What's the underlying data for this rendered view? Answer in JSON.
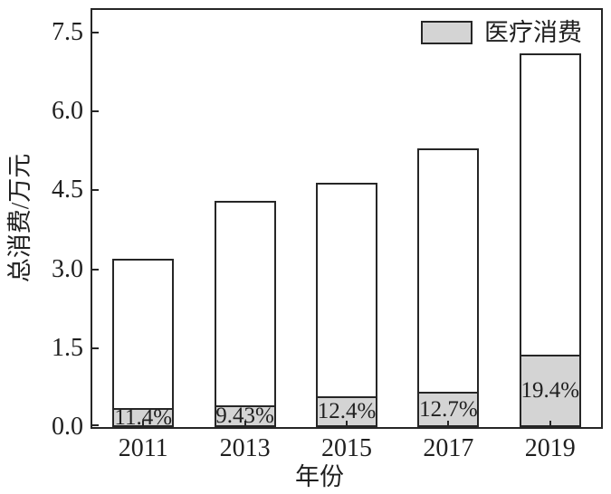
{
  "chart_data": {
    "type": "bar",
    "description": "Grouped total-consumption bars with medical-consumption sub-bars shaded at the bottom of each",
    "categories": [
      "2011",
      "2013",
      "2015",
      "2017",
      "2019"
    ],
    "series": [
      {
        "name": "总消费",
        "values": [
          3.2,
          4.3,
          4.65,
          5.3,
          7.1
        ],
        "fill": "#ffffff"
      },
      {
        "name": "医疗消费",
        "values": [
          0.36,
          0.41,
          0.58,
          0.67,
          1.38
        ],
        "fill": "#d4d4d4"
      }
    ],
    "bar_labels": [
      "11.4%",
      "9.43%",
      "12.4%",
      "12.7%",
      "19.4%"
    ],
    "title": "",
    "xlabel": "年份",
    "ylabel": "总消费/万元",
    "ytick_labels": [
      "0.0",
      "1.5",
      "3.0",
      "4.5",
      "6.0",
      "7.5"
    ],
    "ytick_values": [
      0,
      1.5,
      3,
      4.5,
      6,
      7.5
    ],
    "ylim": [
      0,
      7.93
    ],
    "grid": false,
    "legend_position": "upper-right-inside",
    "colors": {
      "medical_fill": "#d4d4d4",
      "total_fill": "#ffffff",
      "edge": "#262626",
      "background": "#ffffff"
    }
  }
}
